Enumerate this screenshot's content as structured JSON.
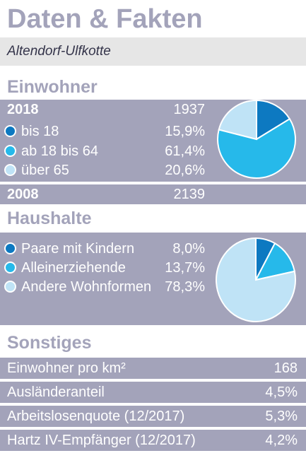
{
  "title": "Daten & Fakten",
  "location": "Altendorf-Ulfkotte",
  "einwohner": {
    "heading": "Einwohner",
    "year1": "2018",
    "total1": "1937",
    "rows": [
      {
        "label": "bis 18",
        "value": "15,9%",
        "color": "#0d79c1"
      },
      {
        "label": "ab 18 bis 64",
        "value": "61,4%",
        "color": "#26b9ea"
      },
      {
        "label": "über 65",
        "value": "20,6%",
        "color": "#bfe3f6"
      }
    ],
    "year2": "2008",
    "total2": "2139"
  },
  "haushalte": {
    "heading": "Haushalte",
    "rows": [
      {
        "label": "Paare mit Kindern",
        "value": "8,0%",
        "color": "#0d79c1"
      },
      {
        "label": "Alleinerziehende",
        "value": "13,7%",
        "color": "#26b9ea"
      },
      {
        "label": "Andere Wohnformen",
        "value": "78,3%",
        "color": "#bfe3f6"
      }
    ]
  },
  "sonstiges": {
    "heading": "Sonstiges",
    "rows": [
      {
        "label": "Einwohner pro km²",
        "value": "168"
      },
      {
        "label": "Ausländeranteil",
        "value": "4,5%"
      },
      {
        "label": "Arbeitslosenquote (12/2017)",
        "value": "5,3%"
      },
      {
        "label": "Hartz IV-Empfänger (12/2017)",
        "value": "4,2%"
      }
    ]
  },
  "chart_data": [
    {
      "type": "pie",
      "categories": [
        "bis 18",
        "ab 18 bis 64",
        "über 65"
      ],
      "values": [
        15.9,
        61.4,
        20.6
      ],
      "colors": [
        "#0d79c1",
        "#26b9ea",
        "#bfe3f6"
      ]
    },
    {
      "type": "pie",
      "categories": [
        "Paare mit Kindern",
        "Alleinerziehende",
        "Andere Wohnformen"
      ],
      "values": [
        8.0,
        13.7,
        78.3
      ],
      "colors": [
        "#0d79c1",
        "#26b9ea",
        "#bfe3f6"
      ]
    }
  ]
}
